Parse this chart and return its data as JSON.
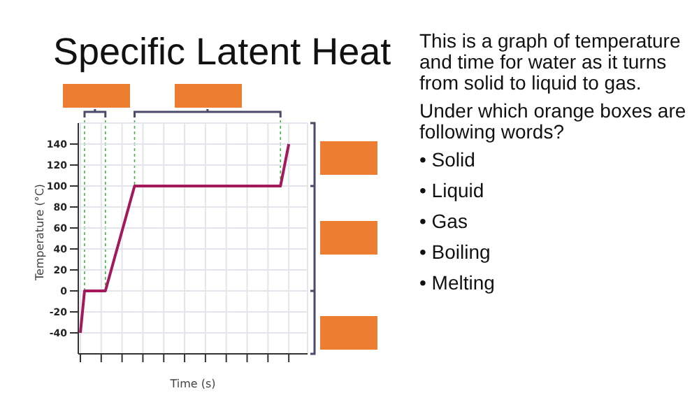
{
  "chart_data": {
    "type": "line",
    "title": "Specific Latent Heat",
    "ylabel": "Temperature (°C)",
    "xlabel": "Time (s)",
    "categories": [
      null,
      null,
      null,
      null,
      null,
      null,
      null,
      null,
      null,
      null,
      null,
      null,
      null,
      null,
      null,
      null,
      null,
      null,
      null,
      null,
      null,
      null,
      null,
      null,
      null,
      null,
      null,
      null,
      null,
      null,
      null,
      null,
      null,
      null,
      null,
      null,
      null,
      null,
      null,
      null,
      null,
      null,
      null,
      null,
      null,
      null,
      null,
      null,
      null,
      null,
      null,
      null,
      null,
      null,
      null
    ],
    "series": [
      {
        "color": "#a3195b",
        "values": [
          -40,
          0,
          null,
          null,
          null,
          null,
          0,
          null,
          null,
          null,
          null,
          null,
          null,
          100,
          null,
          null,
          null,
          null,
          null,
          null,
          null,
          null,
          null,
          null,
          null,
          null,
          null,
          null,
          null,
          null,
          null,
          null,
          null,
          null,
          null,
          null,
          null,
          null,
          null,
          null,
          null,
          null,
          null,
          null,
          null,
          null,
          null,
          null,
          100,
          null,
          140,
          null,
          null,
          null,
          null
        ]
      }
    ],
    "ylim": [
      -60,
      160
    ],
    "yticks": [
      -40,
      -20,
      0,
      20,
      40,
      60,
      80,
      100,
      120,
      140
    ],
    "grid": true,
    "marker": "none",
    "line_style": "solid",
    "tick_labels": "y",
    "annotations": [
      "This is a graph of temperature and time for water as it turns from solid to liquid to gas.",
      "Under which orange boxes are following words?",
      "• Solid",
      "• Liquid",
      "• Gas",
      "• Boiling",
      "• Melting"
    ]
  }
}
